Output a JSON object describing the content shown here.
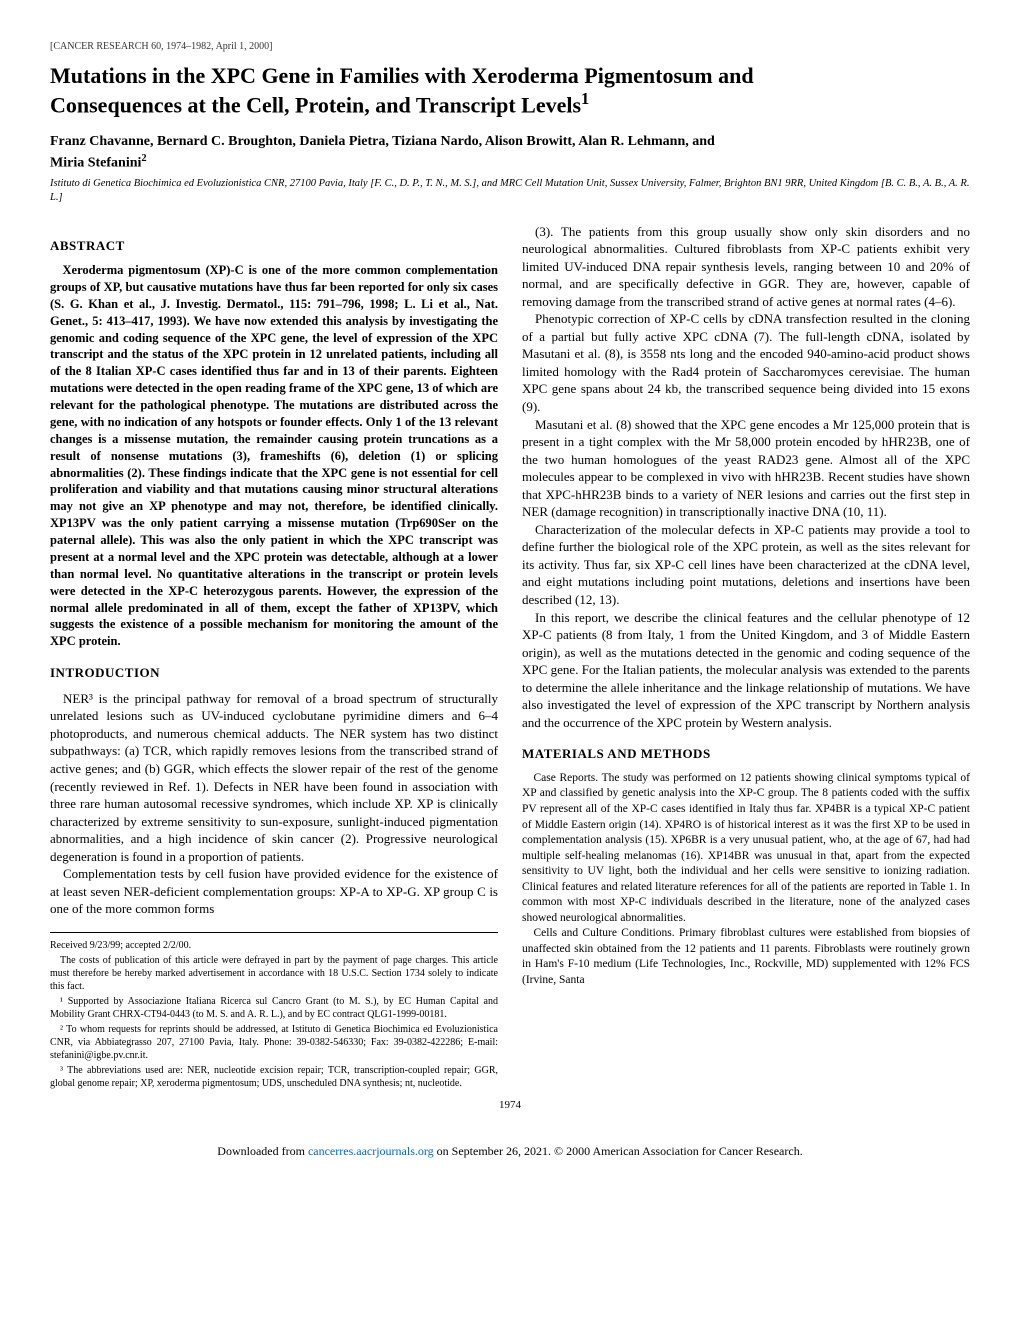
{
  "header": "[CANCER RESEARCH 60, 1974–1982, April 1, 2000]",
  "title_l1": "Mutations in the XPC Gene in Families with Xeroderma Pigmentosum and",
  "title_l2": "Consequences at the Cell, Protein, and Transcript Levels",
  "title_sup": "1",
  "authors_l1": "Franz Chavanne, Bernard C. Broughton, Daniela Pietra, Tiziana Nardo, Alison Browitt, Alan R. Lehmann, and",
  "authors_l2": "Miria Stefanini",
  "authors_sup": "2",
  "affil": "Istituto di Genetica Biochimica ed Evoluzionistica CNR, 27100 Pavia, Italy [F. C., D. P., T. N., M. S.], and MRC Cell Mutation Unit, Sussex University, Falmer, Brighton BN1 9RR, United Kingdom [B. C. B., A. B., A. R. L.]",
  "abs_h": "ABSTRACT",
  "abs_p": "Xeroderma pigmentosum (XP)-C is one of the more common complementation groups of XP, but causative mutations have thus far been reported for only six cases (S. G. Khan et al., J. Investig. Dermatol., 115: 791–796, 1998; L. Li et al., Nat. Genet., 5: 413–417, 1993). We have now extended this analysis by investigating the genomic and coding sequence of the XPC gene, the level of expression of the XPC transcript and the status of the XPC protein in 12 unrelated patients, including all of the 8 Italian XP-C cases identified thus far and in 13 of their parents. Eighteen mutations were detected in the open reading frame of the XPC gene, 13 of which are relevant for the pathological phenotype. The mutations are distributed across the gene, with no indication of any hotspots or founder effects. Only 1 of the 13 relevant changes is a missense mutation, the remainder causing protein truncations as a result of nonsense mutations (3), frameshifts (6), deletion (1) or splicing abnormalities (2). These findings indicate that the XPC gene is not essential for cell proliferation and viability and that mutations causing minor structural alterations may not give an XP phenotype and may not, therefore, be identified clinically. XP13PV was the only patient carrying a missense mutation (Trp690Ser on the paternal allele). This was also the only patient in which the XPC transcript was present at a normal level and the XPC protein was detectable, although at a lower than normal level. No quantitative alterations in the transcript or protein levels were detected in the XP-C heterozygous parents. However, the expression of the normal allele predominated in all of them, except the father of XP13PV, which suggests the existence of a possible mechanism for monitoring the amount of the XPC protein.",
  "intro_h": "INTRODUCTION",
  "intro_p1": "NER³ is the principal pathway for removal of a broad spectrum of structurally unrelated lesions such as UV-induced cyclobutane pyrimidine dimers and 6–4 photoproducts, and numerous chemical adducts. The NER system has two distinct subpathways: (a) TCR, which rapidly removes lesions from the transcribed strand of active genes; and (b) GGR, which effects the slower repair of the rest of the genome (recently reviewed in Ref. 1). Defects in NER have been found in association with three rare human autosomal recessive syndromes, which include XP. XP is clinically characterized by extreme sensitivity to sun-exposure, sunlight-induced pigmentation abnormalities, and a high incidence of skin cancer (2). Progressive neurological degeneration is found in a proportion of patients.",
  "intro_p2": "Complementation tests by cell fusion have provided evidence for the existence of at least seven NER-deficient complementation groups: XP-A to XP-G. XP group C is one of the more common forms",
  "col2_p1": "(3). The patients from this group usually show only skin disorders and no neurological abnormalities. Cultured fibroblasts from XP-C patients exhibit very limited UV-induced DNA repair synthesis levels, ranging between 10 and 20% of normal, and are specifically defective in GGR. They are, however, capable of removing damage from the transcribed strand of active genes at normal rates (4–6).",
  "col2_p2": "Phenotypic correction of XP-C cells by cDNA transfection resulted in the cloning of a partial but fully active XPC cDNA (7). The full-length cDNA, isolated by Masutani et al. (8), is 3558 nts long and the encoded 940-amino-acid product shows limited homology with the Rad4 protein of Saccharomyces cerevisiae. The human XPC gene spans about 24 kb, the transcribed sequence being divided into 15 exons (9).",
  "col2_p3": "Masutani et al. (8) showed that the XPC gene encodes a Mr 125,000 protein that is present in a tight complex with the Mr 58,000 protein encoded by hHR23B, one of the two human homologues of the yeast RAD23 gene. Almost all of the XPC molecules appear to be complexed in vivo with hHR23B. Recent studies have shown that XPC-hHR23B binds to a variety of NER lesions and carries out the first step in NER (damage recognition) in transcriptionally inactive DNA (10, 11).",
  "col2_p4": "Characterization of the molecular defects in XP-C patients may provide a tool to define further the biological role of the XPC protein, as well as the sites relevant for its activity. Thus far, six XP-C cell lines have been characterized at the cDNA level, and eight mutations including point mutations, deletions and insertions have been described (12, 13).",
  "col2_p5": "In this report, we describe the clinical features and the cellular phenotype of 12 XP-C patients (8 from Italy, 1 from the United Kingdom, and 3 of Middle Eastern origin), as well as the mutations detected in the genomic and coding sequence of the XPC gene. For the Italian patients, the molecular analysis was extended to the parents to determine the allele inheritance and the linkage relationship of mutations. We have also investigated the level of expression of the XPC transcript by Northern analysis and the occurrence of the XPC protein by Western analysis.",
  "mm_h": "MATERIALS AND METHODS",
  "mm_p1": "Case Reports. The study was performed on 12 patients showing clinical symptoms typical of XP and classified by genetic analysis into the XP-C group. The 8 patients coded with the suffix PV represent all of the XP-C cases identified in Italy thus far. XP4BR is a typical XP-C patient of Middle Eastern origin (14). XP4RO is of historical interest as it was the first XP to be used in complementation analysis (15). XP6BR is a very unusual patient, who, at the age of 67, had had multiple self-healing melanomas (16). XP14BR was unusual in that, apart from the expected sensitivity to UV light, both the individual and her cells were sensitive to ionizing radiation. Clinical features and related literature references for all of the patients are reported in Table 1. In common with most XP-C individuals described in the literature, none of the analyzed cases showed neurological abnormalities.",
  "mm_p2": "Cells and Culture Conditions. Primary fibroblast cultures were established from biopsies of unaffected skin obtained from the 12 patients and 11 parents. Fibroblasts were routinely grown in Ham's F-10 medium (Life Technologies, Inc., Rockville, MD) supplemented with 12% FCS (Irvine, Santa",
  "foot_r": "Received 9/23/99; accepted 2/2/00.",
  "foot_c": "The costs of publication of this article were defrayed in part by the payment of page charges. This article must therefore be hereby marked advertisement in accordance with 18 U.S.C. Section 1734 solely to indicate this fact.",
  "foot_1": "¹ Supported by Associazione Italiana Ricerca sul Cancro Grant (to M. S.), by EC Human Capital and Mobility Grant CHRX-CT94-0443 (to M. S. and A. R. L.), and by EC contract QLG1-1999-00181.",
  "foot_2": "² To whom requests for reprints should be addressed, at Istituto di Genetica Biochimica ed Evoluzionistica CNR, via Abbiategrasso 207, 27100 Pavia, Italy. Phone: 39-0382-546330; Fax: 39-0382-422286; E-mail: stefanini@igbe.pv.cnr.it.",
  "foot_3": "³ The abbreviations used are: NER, nucleotide excision repair; TCR, transcription-coupled repair; GGR, global genome repair; XP, xeroderma pigmentosum; UDS, unscheduled DNA synthesis; nt, nucleotide.",
  "pgnum": "1974",
  "dl_pre": "Downloaded from ",
  "dl_link": "cancerres.aacrjournals.org",
  "dl_post": " on September 26, 2021. © 2000 American Association for Cancer Research.",
  "colors": {
    "text": "#000000",
    "link": "#0066cc",
    "bg": "#ffffff"
  }
}
